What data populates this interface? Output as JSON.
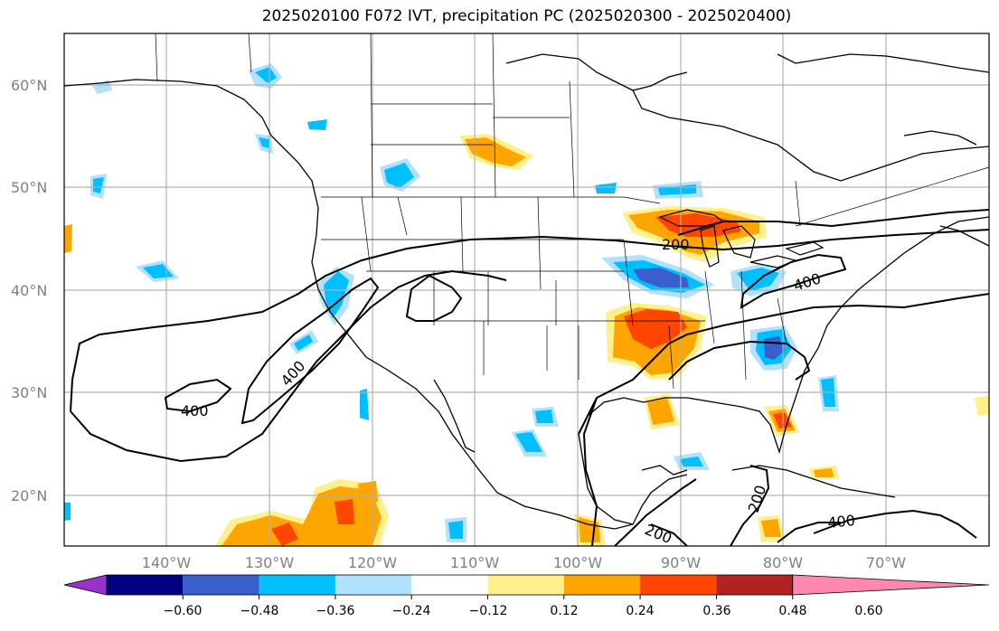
{
  "title": "2025020100 F072 IVT, precipitation PC (2025020300 - 2025020400)",
  "lat_labels": [
    "60°N",
    "50°N",
    "40°N",
    "30°N",
    "20°N"
  ],
  "lon_labels": [
    "140°W",
    "130°W",
    "120°W",
    "110°W",
    "100°W",
    "90°W",
    "80°W",
    "70°W"
  ],
  "contour_labels": [
    "400",
    "400",
    "200",
    "400",
    "200",
    "200",
    "400"
  ],
  "colorbar": {
    "colors": [
      "#9932cc",
      "#000080",
      "#3a5fcd",
      "#00bfff",
      "#b0e2ff",
      "#ffffff",
      "#fff08b",
      "#ffa500",
      "#ff4500",
      "#b22222",
      "#ff88b0"
    ],
    "tick_labels": [
      "−0.60",
      "−0.48",
      "−0.36",
      "−0.24",
      "−0.12",
      "0.12",
      "0.24",
      "0.36",
      "0.48",
      "0.60"
    ]
  },
  "colors": {
    "light_blue": "#b0e2ff",
    "cyan": "#00bfff",
    "blue": "#3a5fcd",
    "yellow": "#fff08b",
    "orange": "#ffa500",
    "red_orange": "#ff4500",
    "grid": "#b0b0b0"
  }
}
